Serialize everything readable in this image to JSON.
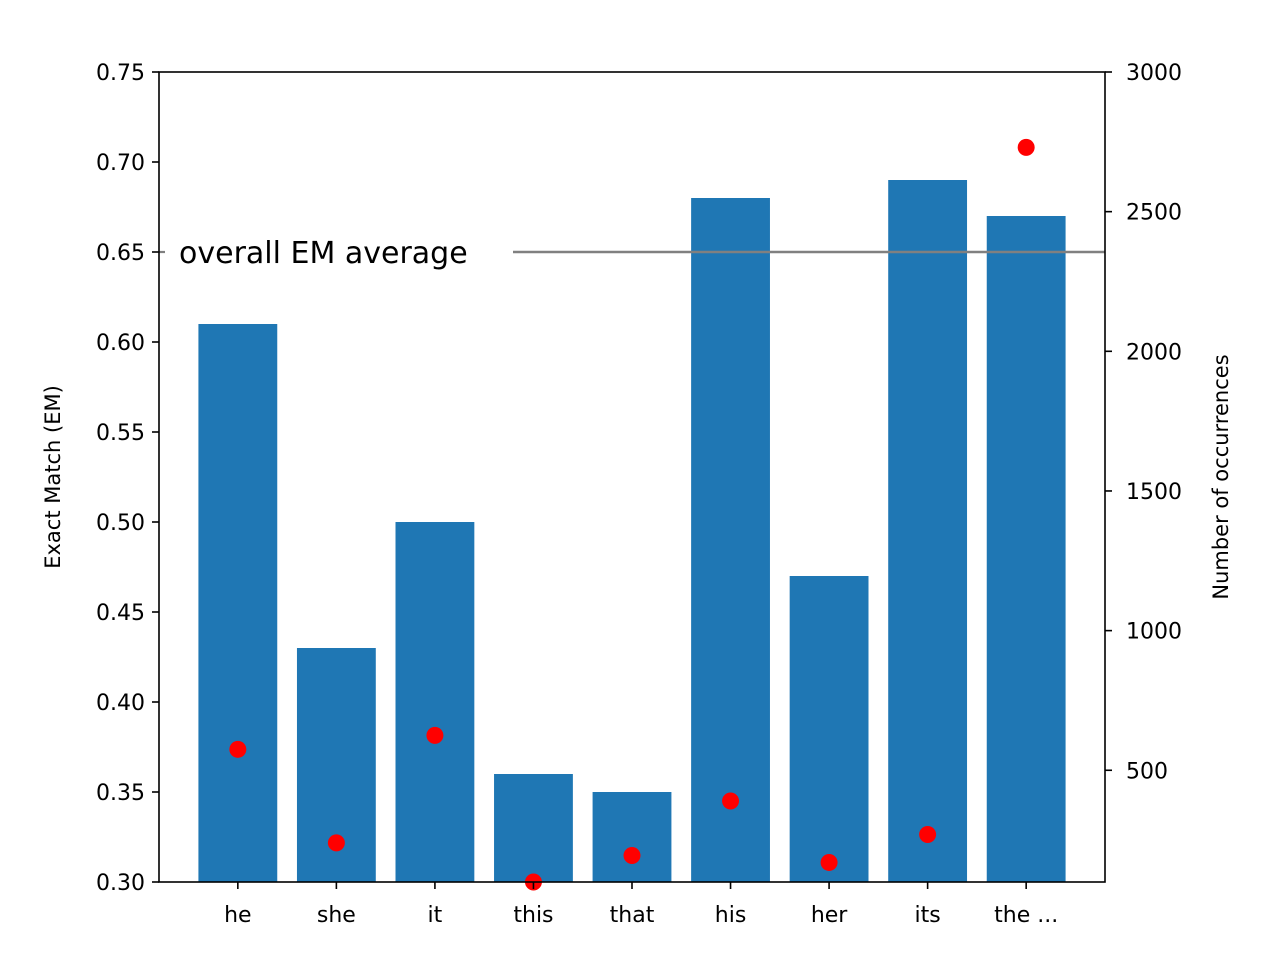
{
  "chart_data": {
    "type": "bar",
    "categories": [
      "he",
      "she",
      "it",
      "this",
      "that",
      "his",
      "her",
      "its",
      "the ..."
    ],
    "series": [
      {
        "type": "bar",
        "axis": "left",
        "color": "#1f77b4",
        "values": [
          0.61,
          0.43,
          0.5,
          0.36,
          0.35,
          0.68,
          0.47,
          0.69,
          0.67
        ]
      },
      {
        "type": "scatter",
        "axis": "right",
        "color": "#ff0000",
        "values": [
          575,
          240,
          625,
          100,
          195,
          390,
          170,
          270,
          2730
        ]
      }
    ],
    "reference_line": {
      "label": "overall EM average",
      "value": 0.65,
      "color": "#808080"
    },
    "ylabel": "Exact Match (EM)",
    "ylim": [
      0.3,
      0.75
    ],
    "yticks": [
      "0.30",
      "0.35",
      "0.40",
      "0.45",
      "0.50",
      "0.55",
      "0.60",
      "0.65",
      "0.70",
      "0.75"
    ],
    "y2label": "Number of occurrences",
    "y2lim": [
      100,
      3000
    ],
    "y2ticks": [
      "500",
      "1000",
      "1500",
      "2000",
      "2500",
      "3000"
    ],
    "grid": false
  }
}
